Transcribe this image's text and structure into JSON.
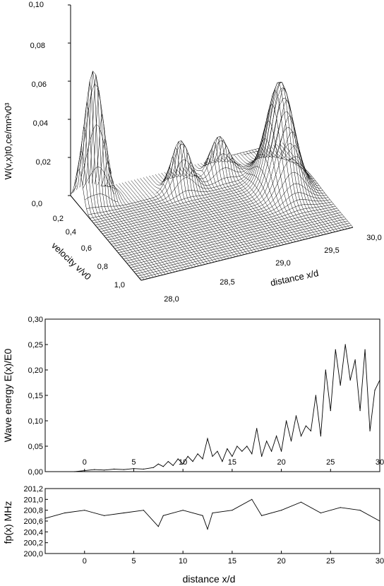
{
  "chart_data": [
    {
      "type": "surface",
      "zlabel": "W(v,x)t0,ce/mn²v0³",
      "ylabel": "velocity v/v0",
      "xlabel": "distance x/d",
      "z_ticks": [
        "0,0",
        "0,02",
        "0,04",
        "0,06",
        "0,08",
        "0,10"
      ],
      "v_ticks": [
        "0,2",
        "0,4",
        "0,6",
        "0,8",
        "1,0"
      ],
      "x_ticks": [
        "28,0",
        "28,5",
        "29,0",
        "29,5",
        "30,0"
      ],
      "zlim": [
        0,
        0.1
      ],
      "vlim": [
        0.1,
        1.05
      ],
      "xlim": [
        28.0,
        30.0
      ],
      "peaks": [
        {
          "x": 28.15,
          "v": 0.2,
          "height": 0.068,
          "width_x": 0.12,
          "width_v": 0.06
        },
        {
          "x": 28.9,
          "v": 0.3,
          "height": 0.026,
          "width_x": 0.12,
          "width_v": 0.06
        },
        {
          "x": 29.3,
          "v": 0.25,
          "height": 0.02,
          "width_x": 0.12,
          "width_v": 0.06
        },
        {
          "x": 29.7,
          "v": 0.5,
          "height": 0.055,
          "width_x": 0.15,
          "width_v": 0.15
        },
        {
          "x": 28.0,
          "v": 0.25,
          "height": 0.008,
          "width_x": 0.1,
          "width_v": 0.06
        }
      ]
    },
    {
      "type": "line",
      "ylabel": "Wave energy E(x)/E0",
      "ylim": [
        0,
        0.3
      ],
      "xlim": [
        -4,
        30
      ],
      "y_ticks": [
        "0,00",
        "0,05",
        "0,10",
        "0,15",
        "0,20",
        "0,25",
        "0,30"
      ],
      "x_ticks": [
        "0",
        "5",
        "10",
        "15",
        "20",
        "25",
        "30"
      ],
      "series": [
        {
          "x": [
            -1.0,
            0.0,
            1.0,
            2.0,
            3.0,
            4.0,
            5.0,
            6.0,
            7.0,
            7.5,
            8.0,
            8.5,
            9.0,
            9.5,
            10.0,
            10.5,
            11.0,
            11.5,
            12.0,
            12.5,
            13.0,
            13.5,
            14.0,
            14.5,
            15.0,
            15.5,
            16.0,
            16.5,
            17.0,
            17.5,
            18.0,
            18.5,
            19.0,
            19.5,
            20.0,
            20.5,
            21.0,
            21.5,
            22.0,
            22.5,
            23.0,
            23.5,
            24.0,
            24.5,
            25.0,
            25.5,
            26.0,
            26.5,
            27.0,
            27.5,
            28.0,
            28.5,
            29.0,
            29.5,
            30.0
          ],
          "y": [
            0.0,
            0.002,
            0.004,
            0.003,
            0.005,
            0.004,
            0.006,
            0.005,
            0.008,
            0.015,
            0.01,
            0.02,
            0.012,
            0.025,
            0.015,
            0.03,
            0.02,
            0.035,
            0.025,
            0.065,
            0.03,
            0.04,
            0.02,
            0.045,
            0.03,
            0.05,
            0.04,
            0.05,
            0.035,
            0.085,
            0.03,
            0.06,
            0.04,
            0.07,
            0.04,
            0.1,
            0.06,
            0.11,
            0.07,
            0.09,
            0.08,
            0.15,
            0.07,
            0.2,
            0.12,
            0.24,
            0.17,
            0.25,
            0.18,
            0.22,
            0.12,
            0.24,
            0.08,
            0.16,
            0.18
          ]
        }
      ]
    },
    {
      "type": "line",
      "ylabel": "fp(x) MHz",
      "ylim": [
        200.0,
        201.2
      ],
      "xlim": [
        -4,
        30
      ],
      "y_ticks": [
        "200,0",
        "200,2",
        "200,4",
        "200,6",
        "200,8",
        "201,0",
        "201,2"
      ],
      "x_ticks": [
        "0",
        "5",
        "10",
        "15",
        "20",
        "25",
        "30"
      ],
      "xlabel": "distance x/d",
      "series": [
        {
          "x": [
            -4,
            -2,
            0,
            2,
            4,
            6,
            7.5,
            8,
            10,
            12,
            12.5,
            13,
            15,
            17,
            18,
            20,
            22,
            24,
            26,
            28,
            30
          ],
          "y": [
            200.65,
            200.75,
            200.8,
            200.7,
            200.75,
            200.8,
            200.5,
            200.7,
            200.8,
            200.7,
            200.45,
            200.75,
            200.8,
            201.0,
            200.7,
            200.8,
            200.95,
            200.75,
            200.85,
            200.8,
            200.6
          ]
        }
      ]
    }
  ]
}
